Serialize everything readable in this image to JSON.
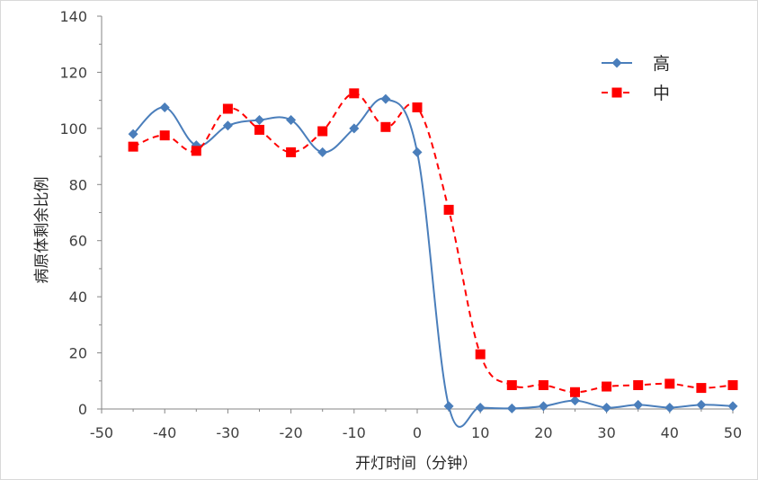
{
  "chart_data": {
    "type": "line",
    "xlabel": "开灯时间（分钟）",
    "ylabel": "病原体剩余比例",
    "xlim": [
      -50,
      50
    ],
    "ylim": [
      0,
      140
    ],
    "x_ticks": [
      "-50",
      "-40",
      "-30",
      "-20",
      "-10",
      "0",
      "10",
      "20",
      "30",
      "40",
      "50"
    ],
    "y_ticks": [
      "0",
      "20",
      "40",
      "60",
      "80",
      "100",
      "120",
      "140"
    ],
    "grid": false,
    "legend_position": "top-right",
    "series": [
      {
        "name": "高",
        "color": "#4a7ebb",
        "line_style": "solid",
        "smoothed": true,
        "marker": "diamond",
        "x": [
          -45,
          -40,
          -35,
          -30,
          -25,
          -20,
          -15,
          -10,
          -5,
          0,
          5,
          10,
          15,
          20,
          25,
          30,
          35,
          40,
          45,
          50
        ],
        "values": [
          98,
          107.5,
          94,
          101,
          103,
          103,
          91.5,
          100,
          110.5,
          91.5,
          1,
          0.5,
          0.2,
          1,
          3,
          0.5,
          1.5,
          0.5,
          1.5,
          1
        ]
      },
      {
        "name": "中",
        "color": "#ff0000",
        "line_style": "dashed",
        "smoothed": true,
        "marker": "square",
        "x": [
          -45,
          -40,
          -35,
          -30,
          -25,
          -20,
          -15,
          -10,
          -5,
          0,
          5,
          10,
          15,
          20,
          25,
          30,
          35,
          40,
          45,
          50
        ],
        "values": [
          93.5,
          97.5,
          92,
          107,
          99.5,
          91.5,
          99,
          112.5,
          100.5,
          107.5,
          71,
          19.5,
          8.5,
          8.5,
          6,
          8,
          8.5,
          9,
          7.5,
          8.5
        ]
      }
    ]
  }
}
